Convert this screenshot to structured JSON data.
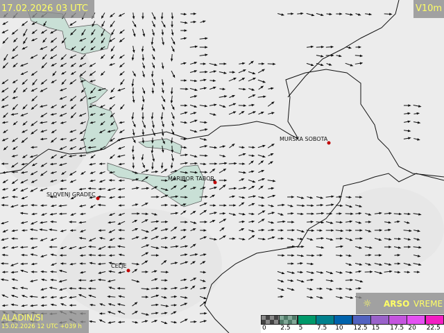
{
  "header": {
    "valid_time": "17.02.2026 03 UTC",
    "parameter": "V10m"
  },
  "model": {
    "name": "ALADIN/SI",
    "run": "15.02.2026 12 UTC +039 h"
  },
  "brand": {
    "icon": "sun-satellite-icon",
    "bold": "ARSO",
    "light": "VREME"
  },
  "cities": [
    {
      "name": "MURSKA SOBOTA"
    },
    {
      "name": "MARIBOR TABOR"
    },
    {
      "name": "SLOVENJ GRADEC"
    },
    {
      "name": "CELJE"
    }
  ],
  "legend": {
    "unit_labels": [
      "0",
      "2.5",
      "5",
      "7.5",
      "10",
      "12.5",
      "15",
      "17.5",
      "20",
      "22.5"
    ],
    "colors": [
      "checker-dark",
      "checker-green",
      "#00996a",
      "#00808c",
      "#0063ac",
      "#5262c0",
      "#9a62ca",
      "#c455de",
      "#e452f2",
      "#f21ec2"
    ]
  },
  "colors": {
    "label_text": "#ffff66",
    "city_dot": "#c00000",
    "area_fill": "#c9e0d6"
  }
}
